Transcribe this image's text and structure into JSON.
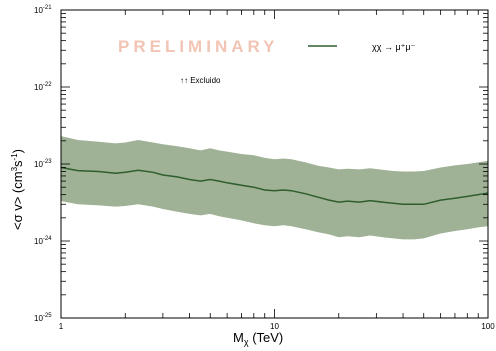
{
  "chart_data": {
    "type": "area",
    "watermark": "PRELIMINARY",
    "annotation": "↑↑ Excluido",
    "xlabel_main": "M",
    "xlabel_sub": "χ",
    "xlabel_unit": " (TeV)",
    "ylabel_main": "<σ v> (cm",
    "ylabel_sup1": "3",
    "ylabel_mid": "s",
    "ylabel_sup2": "-1",
    "ylabel_end": ")",
    "xscale": "log",
    "yscale": "log",
    "xlim": [
      1,
      100
    ],
    "ylim": [
      1e-25,
      1e-21
    ],
    "x_ticks": [
      {
        "value": 1,
        "label": "1"
      },
      {
        "value": 10,
        "label": "10"
      },
      {
        "value": 100,
        "label": "100"
      }
    ],
    "y_ticks": [
      {
        "value": 1e-25,
        "base": "10",
        "exp": "-25"
      },
      {
        "value": 1e-24,
        "base": "10",
        "exp": "-24"
      },
      {
        "value": 1e-23,
        "base": "10",
        "exp": "-23"
      },
      {
        "value": 1e-22,
        "base": "10",
        "exp": "-22"
      },
      {
        "value": 1e-21,
        "base": "10",
        "exp": "-21"
      }
    ],
    "series": [
      {
        "name": "χχ → μ⁺μ⁻",
        "color": "#2e5e2e",
        "x": [
          1,
          1.2,
          1.5,
          1.8,
          2.0,
          2.3,
          2.7,
          3.0,
          3.5,
          4.0,
          4.5,
          5.0,
          5.5,
          6.0,
          7.0,
          8.0,
          9.0,
          10,
          11,
          12,
          14,
          16,
          18,
          20,
          22,
          25,
          28,
          32,
          36,
          40,
          45,
          50,
          60,
          70,
          80,
          90,
          100
        ],
        "values": [
          9e-24,
          8.2e-24,
          8e-24,
          7.6e-24,
          7.8e-24,
          8.3e-24,
          7.8e-24,
          7.2e-24,
          6.8e-24,
          6.3e-24,
          6e-24,
          6.3e-24,
          6e-24,
          5.7e-24,
          5.3e-24,
          5e-24,
          4.6e-24,
          4.5e-24,
          4.6e-24,
          4.5e-24,
          4.1e-24,
          3.7e-24,
          3.4e-24,
          3.2e-24,
          3.3e-24,
          3.2e-24,
          3.35e-24,
          3.2e-24,
          3.1e-24,
          3e-24,
          3e-24,
          3e-24,
          3.4e-24,
          3.6e-24,
          3.8e-24,
          4e-24,
          4.2e-24
        ],
        "band_upper": [
          2.3e-23,
          2.05e-23,
          1.95e-23,
          1.85e-23,
          1.9e-23,
          2.05e-23,
          1.9e-23,
          1.8e-23,
          1.7e-23,
          1.6e-23,
          1.5e-23,
          1.6e-23,
          1.5e-23,
          1.45e-23,
          1.35e-23,
          1.3e-23,
          1.2e-23,
          1.15e-23,
          1.18e-23,
          1.15e-23,
          1.05e-23,
          9.5e-24,
          9e-24,
          8.5e-24,
          8.7e-24,
          8.5e-24,
          8.8e-24,
          8.4e-24,
          8.1e-24,
          8e-24,
          8e-24,
          8.1e-24,
          9e-24,
          9.6e-24,
          1e-23,
          1.05e-23,
          1.1e-23
        ],
        "band_lower": [
          3.3e-24,
          3e-24,
          2.9e-24,
          2.8e-24,
          2.85e-24,
          3e-24,
          2.8e-24,
          2.6e-24,
          2.4e-24,
          2.25e-24,
          2.15e-24,
          2.25e-24,
          2.1e-24,
          2e-24,
          1.85e-24,
          1.7e-24,
          1.6e-24,
          1.55e-24,
          1.6e-24,
          1.55e-24,
          1.42e-24,
          1.3e-24,
          1.22e-24,
          1.12e-24,
          1.15e-24,
          1.12e-24,
          1.18e-24,
          1.12e-24,
          1.08e-24,
          1.05e-24,
          1.05e-24,
          1.08e-24,
          1.25e-24,
          1.35e-24,
          1.42e-24,
          1.5e-24,
          1.55e-24
        ]
      }
    ],
    "band_color": "#a0b296",
    "grid": false,
    "legend_position": "top-right"
  }
}
